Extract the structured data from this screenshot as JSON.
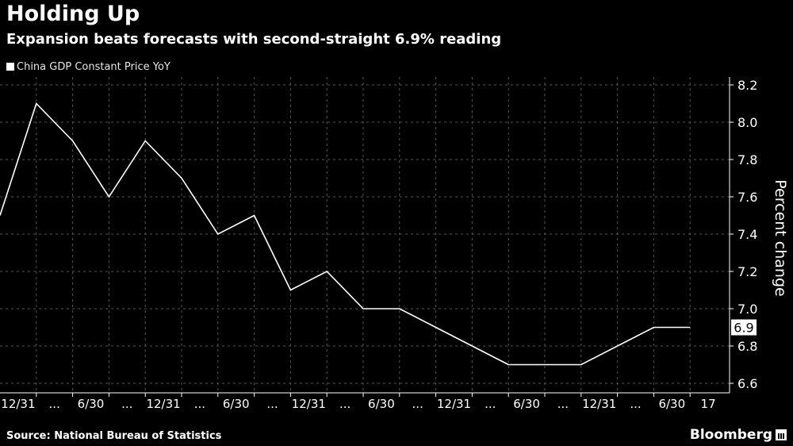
{
  "header": {
    "title": "Holding Up",
    "subtitle": "Expansion beats forecasts with second-straight 6.9% reading"
  },
  "legend": {
    "label": "China GDP Constant Price YoY"
  },
  "footer": {
    "source": "Source: National Bureau of Statistics",
    "brand": "Bloomberg"
  },
  "colors": {
    "background": "#000000",
    "line": "#ffffff",
    "grid": "#555555",
    "text": "#ffffff"
  },
  "chart_data": {
    "type": "line",
    "title": "Holding Up",
    "subtitle": "Expansion beats forecasts with second-straight 6.9% reading",
    "ylabel": "Percent change",
    "xlabel": "",
    "ylim": [
      6.55,
      8.25
    ],
    "y_ticks": [
      6.6,
      6.8,
      7.0,
      7.2,
      7.4,
      7.6,
      7.8,
      8.0,
      8.2
    ],
    "y_tick_labels": [
      "6.6",
      "6.8",
      "7.0",
      "7.2",
      "7.4",
      "7.6",
      "7.8",
      "8.0",
      "8.2"
    ],
    "x_tick_labels": [
      "12/31",
      "...",
      "6/30",
      "...",
      "12/31",
      "...",
      "6/30",
      "...",
      "12/31",
      "...",
      "6/30",
      "...",
      "12/31",
      "...",
      "6/30",
      "...",
      "12/31",
      "...",
      "6/30",
      "17"
    ],
    "last_value_label": "6.9",
    "grid": true,
    "legend_position": "top-left",
    "series": [
      {
        "name": "China GDP Constant Price YoY",
        "values": [
          7.5,
          8.1,
          7.9,
          7.6,
          7.9,
          7.7,
          7.4,
          7.5,
          7.1,
          7.2,
          7.0,
          7.0,
          6.9,
          6.8,
          6.7,
          6.7,
          6.7,
          6.8,
          6.9,
          6.9
        ]
      }
    ]
  }
}
